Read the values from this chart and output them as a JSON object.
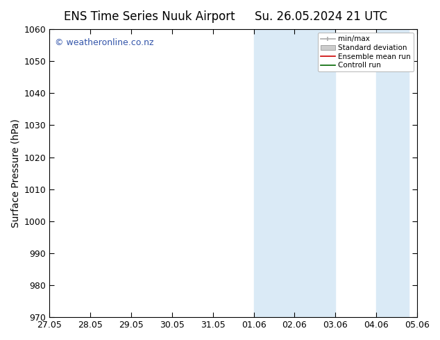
{
  "title_left": "ENS Time Series Nuuk Airport",
  "title_right": "Su. 26.05.2024 21 UTC",
  "ylabel": "Surface Pressure (hPa)",
  "ylim": [
    970,
    1060
  ],
  "yticks": [
    970,
    980,
    990,
    1000,
    1010,
    1020,
    1030,
    1040,
    1050,
    1060
  ],
  "xtick_labels": [
    "27.05",
    "28.05",
    "29.05",
    "30.05",
    "31.05",
    "01.06",
    "02.06",
    "03.06",
    "04.06",
    "05.06"
  ],
  "xtick_positions": [
    0,
    1,
    2,
    3,
    4,
    5,
    6,
    7,
    8,
    9
  ],
  "xlim": [
    0,
    9
  ],
  "shaded_regions": [
    {
      "xmin": 4.5,
      "xmax": 5.5,
      "color": "#daeaf6"
    },
    {
      "xmin": 5.5,
      "xmax": 6.5,
      "color": "#daeaf6"
    },
    {
      "xmin": 7.5,
      "xmax": 8.5,
      "color": "#daeaf6"
    }
  ],
  "watermark_text": "© weatheronline.co.nz",
  "watermark_color": "#3355aa",
  "legend_items": [
    {
      "label": "min/max",
      "color": "#aaaaaa",
      "style": "minmax"
    },
    {
      "label": "Standard deviation",
      "color": "#cccccc",
      "style": "fill"
    },
    {
      "label": "Ensemble mean run",
      "color": "#ff0000",
      "style": "line"
    },
    {
      "label": "Controll run",
      "color": "#007700",
      "style": "line"
    }
  ],
  "background_color": "#ffffff",
  "title_fontsize": 12,
  "label_fontsize": 10,
  "tick_fontsize": 9,
  "watermark_fontsize": 9
}
